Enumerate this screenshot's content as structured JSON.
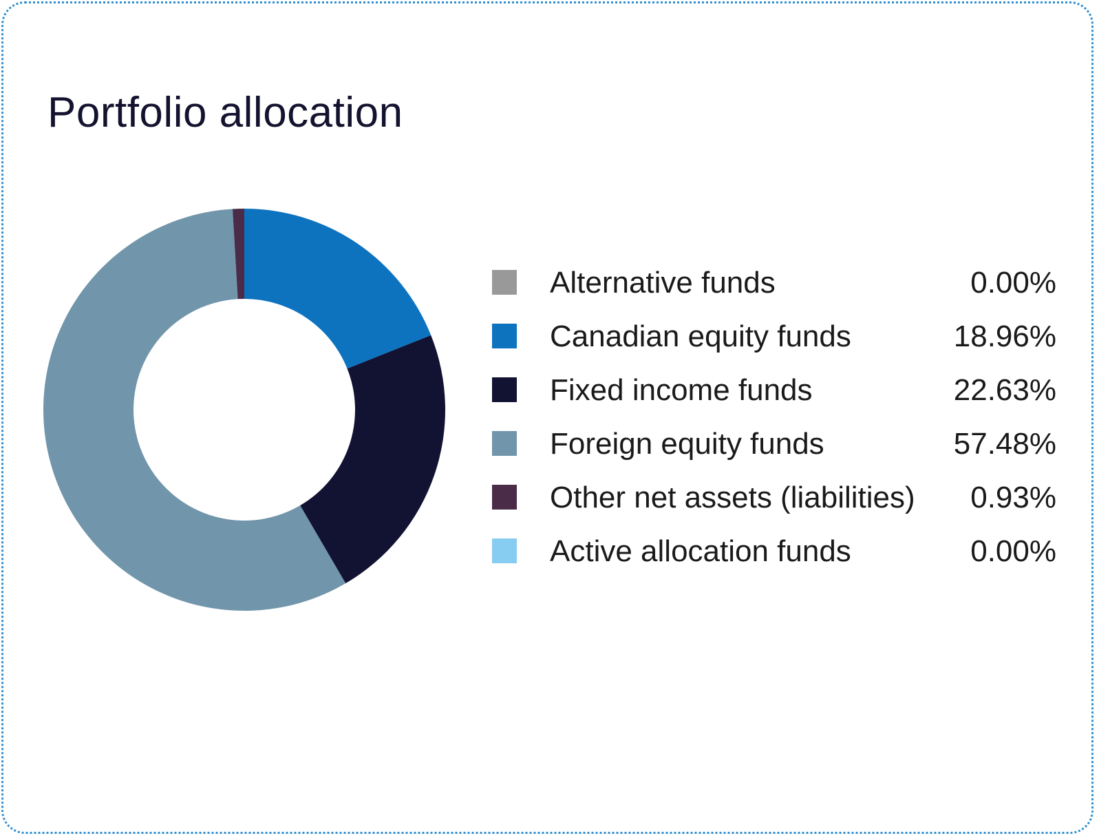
{
  "card": {
    "title": "Portfolio allocation"
  },
  "chart_data": {
    "type": "pie",
    "title": "Portfolio allocation",
    "categories": [
      "Alternative funds",
      "Canadian equity funds",
      "Fixed income funds",
      "Foreign equity funds",
      "Other net assets (liabilities)",
      "Active allocation funds"
    ],
    "values": [
      0.0,
      18.96,
      22.63,
      57.48,
      0.93,
      0.0
    ],
    "value_labels": [
      "0.00%",
      "18.96%",
      "22.63%",
      "57.48%",
      "0.93%",
      "0.00%"
    ],
    "colors": [
      "#999999",
      "#0d73bf",
      "#121233",
      "#7195aa",
      "#4a2c48",
      "#86cdf1"
    ],
    "legend_position": "right",
    "donut": true
  }
}
